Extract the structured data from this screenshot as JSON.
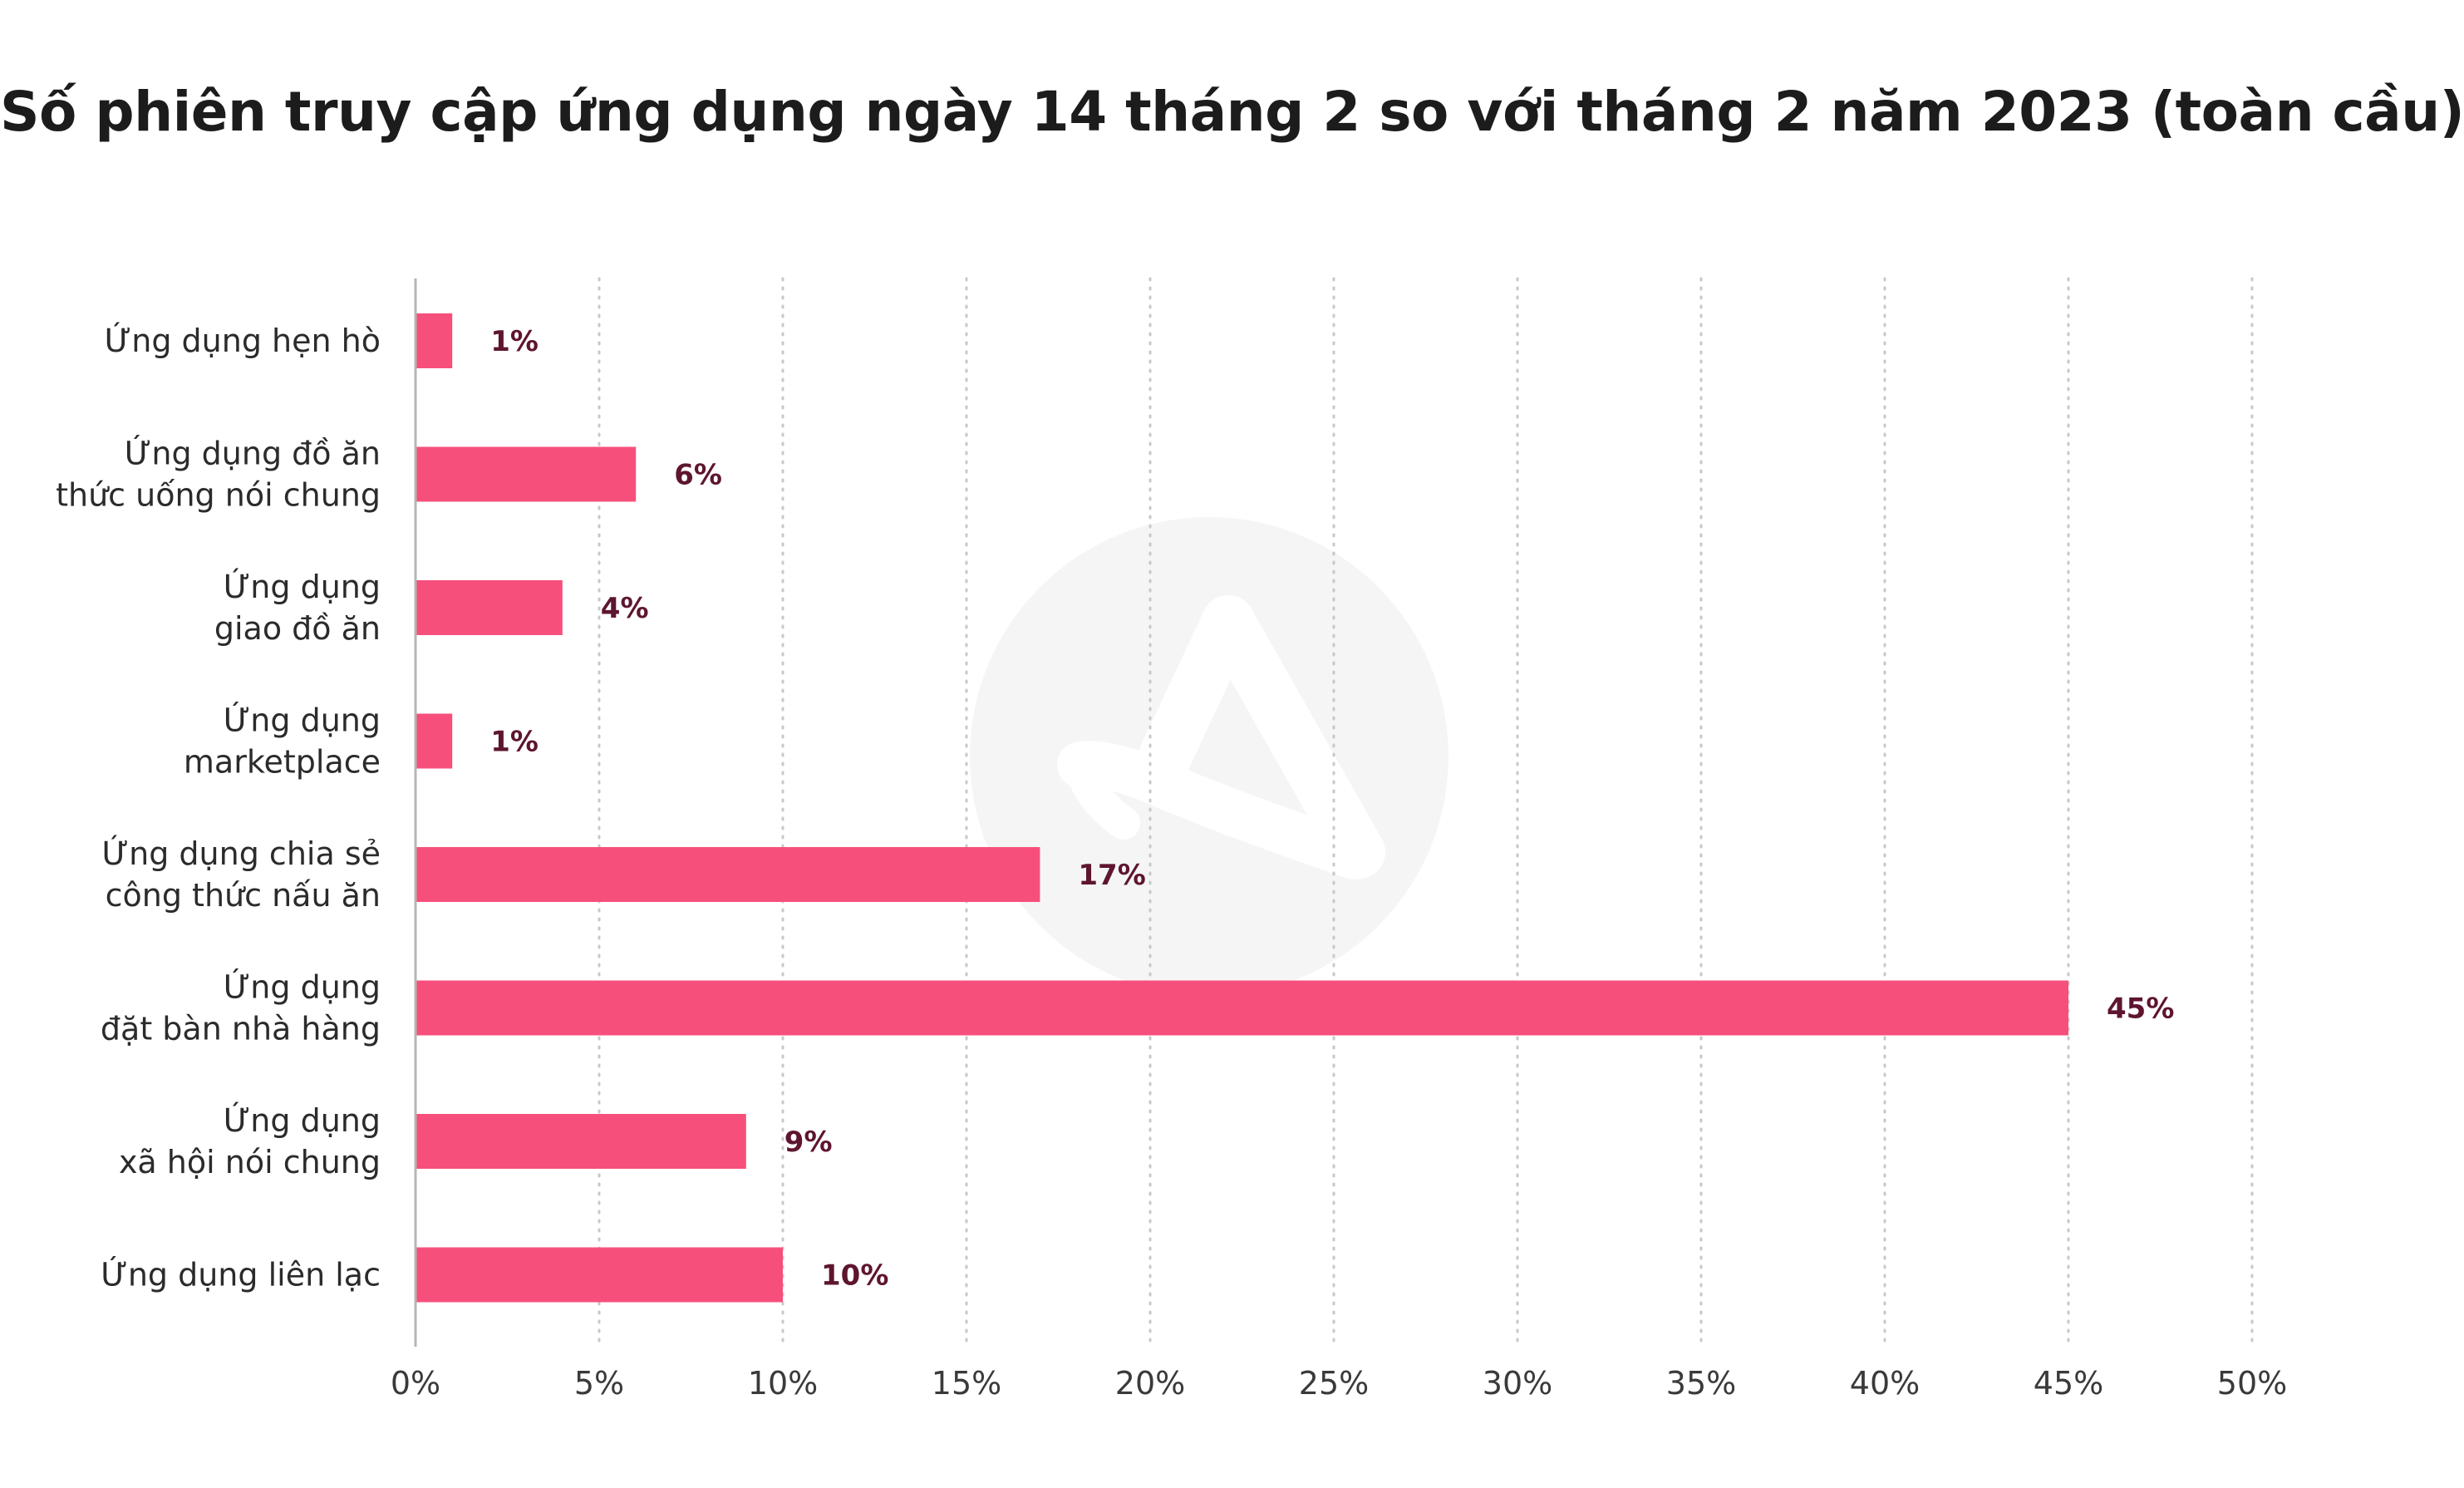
{
  "chart_data": {
    "type": "bar",
    "orientation": "horizontal",
    "title": "Số phiên truy cập ứng dụng ngày 14 tháng 2 so với tháng 2 năm 2023 (toàn cầu)",
    "categories": [
      "Ứng dụng hẹn hò",
      "Ứng dụng đồ ăn\nthức uống nói chung",
      "Ứng dụng\ngiao đồ ăn",
      "Ứng dụng\nmarketplace",
      "Ứng dụng chia sẻ\ncông thức nấu ăn",
      "Ứng dụng\nđặt bàn nhà hàng",
      "Ứng dụng\nxã hội nói chung",
      "Ứng dụng liên lạc"
    ],
    "values": [
      1,
      6,
      4,
      1,
      17,
      45,
      9,
      10
    ],
    "value_labels": [
      "1%",
      "6%",
      "4%",
      "1%",
      "17%",
      "45%",
      "9%",
      "10%"
    ],
    "xlim": [
      0,
      50
    ],
    "xticks": [
      0,
      5,
      10,
      15,
      20,
      25,
      30,
      35,
      40,
      45,
      50
    ],
    "xtick_labels": [
      "0%",
      "5%",
      "10%",
      "15%",
      "20%",
      "25%",
      "30%",
      "35%",
      "40%",
      "45%",
      "50%"
    ],
    "xlabel": "",
    "ylabel": "",
    "grid": "vertical dotted",
    "legend": "none",
    "colors": {
      "bar": "#f74f7b",
      "value_label": "#5e1530",
      "grid": "#c8c8c8",
      "axis": "#b5b5b5",
      "watermark": "#f5f5f5"
    }
  }
}
